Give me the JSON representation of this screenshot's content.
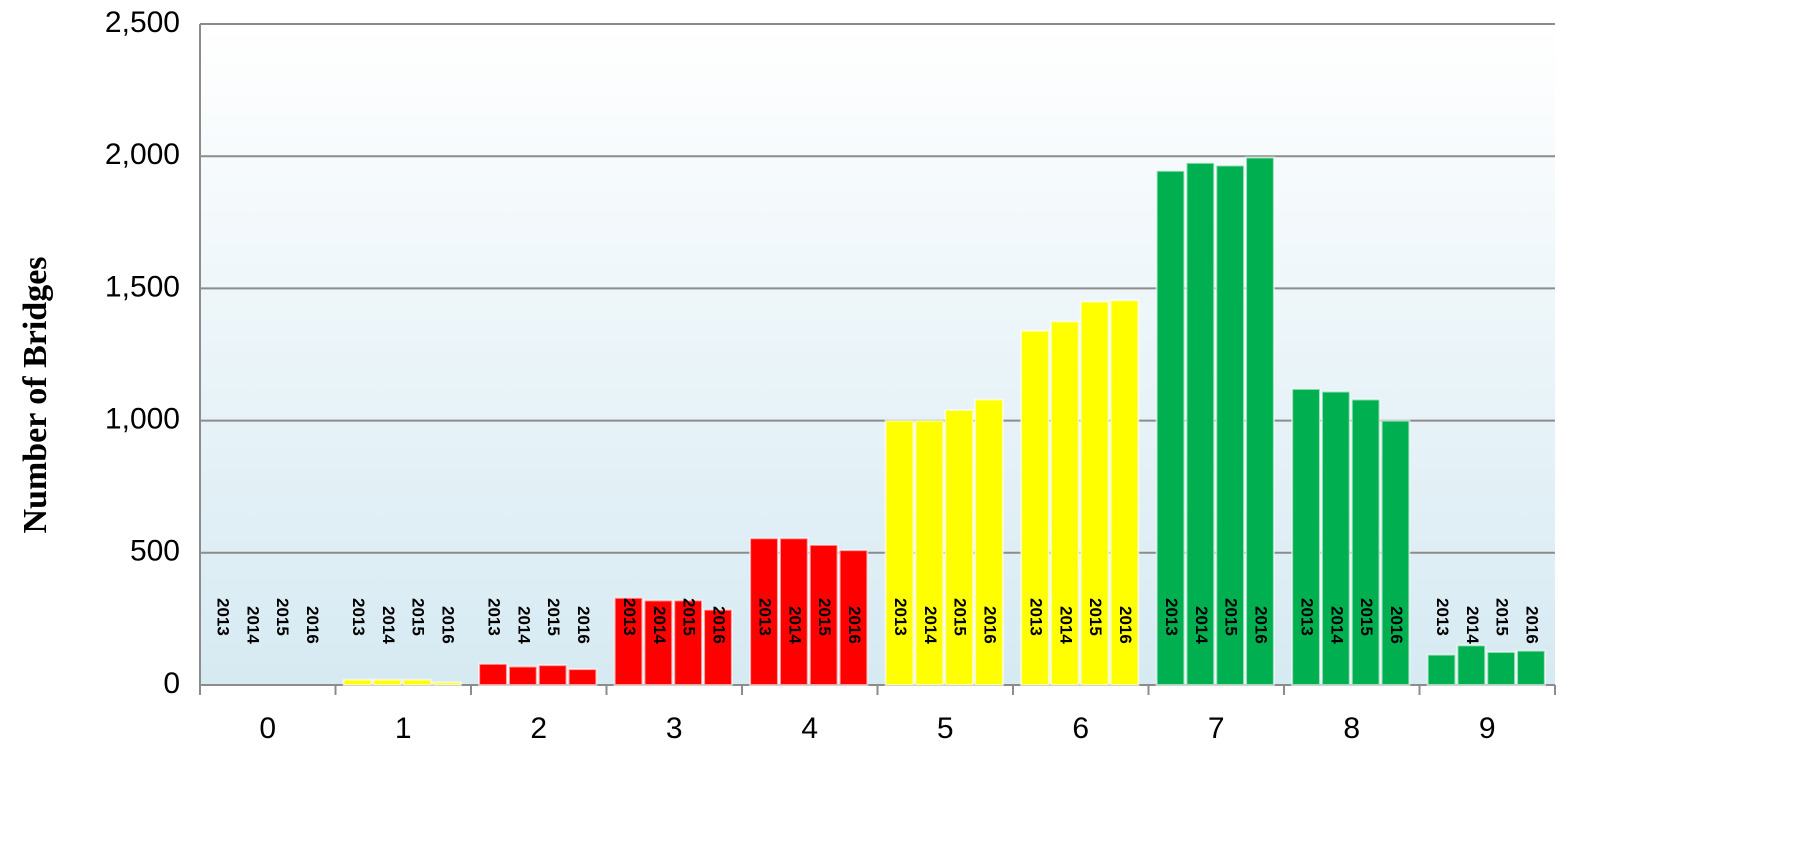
{
  "chart_data": {
    "type": "bar",
    "y_label": "Number of Bridges",
    "categories": [
      "0",
      "1",
      "2",
      "3",
      "4",
      "5",
      "6",
      "7",
      "8",
      "9"
    ],
    "category_colors": [
      "#ff0000",
      "#ffff00",
      "#ff0000",
      "#ff0000",
      "#ff0000",
      "#ffff00",
      "#ffff00",
      "#00b050",
      "#00b050",
      "#00b050"
    ],
    "series": [
      {
        "name": "2013",
        "values": [
          0,
          20,
          80,
          330,
          555,
          1000,
          1340,
          1945,
          1120,
          115
        ]
      },
      {
        "name": "2014",
        "values": [
          0,
          20,
          70,
          320,
          555,
          1000,
          1375,
          1975,
          1110,
          150
        ]
      },
      {
        "name": "2015",
        "values": [
          0,
          20,
          75,
          320,
          530,
          1040,
          1450,
          1965,
          1080,
          125
        ]
      },
      {
        "name": "2016",
        "values": [
          0,
          10,
          60,
          285,
          510,
          1080,
          1455,
          1995,
          1000,
          130
        ]
      }
    ],
    "ylim": [
      0,
      2500
    ],
    "yticks": [
      0,
      500,
      {
        "value": 1000,
        "label": "1,000"
      },
      {
        "value": 1500,
        "label": "1,500"
      },
      {
        "value": 2000,
        "label": "2,000"
      },
      {
        "value": 2500,
        "label": "2,500"
      }
    ],
    "grid": true
  }
}
